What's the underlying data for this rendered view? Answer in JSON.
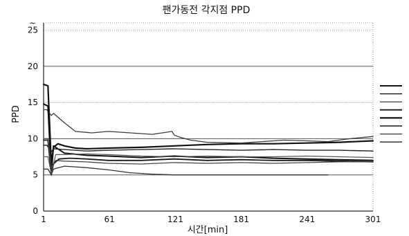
{
  "chart_data": {
    "type": "line",
    "title": "팬가동전 각지점 PPD",
    "xlabel": "시간[min]",
    "ylabel": "PPD",
    "xlim": [
      1,
      301
    ],
    "ylim": [
      0,
      26
    ],
    "x_ticks": [
      1,
      61,
      121,
      181,
      241,
      301
    ],
    "y_ticks": [
      0,
      5,
      10,
      15,
      20,
      25
    ],
    "y_tick_labels": [
      "0",
      "5",
      "10",
      "15",
      "20",
      "25"
    ],
    "grid": "horizontal lines at 5, 10, 15, 20 (solid and dotted); dotted vertical at x=1 and x=301",
    "legend": "right (series names unreadable)",
    "legend_entry_count": 8,
    "series": [
      {
        "x": [
          1,
          5,
          8,
          10,
          14,
          20,
          30,
          40,
          60,
          90,
          120,
          150,
          181,
          210,
          240,
          270,
          301
        ],
        "y": [
          17.5,
          17.3,
          6.5,
          8.8,
          9.3,
          9.0,
          8.7,
          8.6,
          8.7,
          8.8,
          9.0,
          9.2,
          9.3,
          9.3,
          9.4,
          9.5,
          9.7
        ],
        "color": "#111111",
        "width": 2.2
      },
      {
        "x": [
          1,
          4,
          8,
          10,
          20,
          30,
          45,
          60,
          80,
          100,
          118,
          120,
          125,
          135,
          150,
          181,
          200,
          220,
          241,
          260,
          280,
          301
        ],
        "y": [
          14.0,
          14.0,
          13.2,
          13.5,
          12.2,
          11.0,
          10.8,
          11.0,
          10.8,
          10.6,
          11.0,
          10.5,
          10.2,
          9.8,
          9.5,
          9.4,
          9.6,
          9.8,
          9.7,
          9.6,
          10.0,
          10.3
        ],
        "color": "#3a3a3a",
        "width": 1.3
      },
      {
        "x": [
          1,
          5,
          8,
          10,
          20,
          40,
          60,
          90,
          120,
          150,
          181,
          210,
          241,
          270,
          301
        ],
        "y": [
          14.8,
          14.5,
          5.0,
          9.0,
          8.0,
          7.7,
          7.6,
          7.4,
          7.6,
          7.4,
          7.5,
          7.3,
          7.2,
          7.1,
          7.0
        ],
        "color": "#111111",
        "width": 2.0
      },
      {
        "x": [
          1,
          5,
          8,
          10,
          15,
          25,
          40,
          60,
          90,
          120,
          150,
          181,
          210,
          241,
          270,
          301
        ],
        "y": [
          9.8,
          9.8,
          5.0,
          6.5,
          7.2,
          7.3,
          7.2,
          7.0,
          7.0,
          7.2,
          7.0,
          7.1,
          7.0,
          7.0,
          6.9,
          6.8
        ],
        "color": "#1a1a1a",
        "width": 1.8
      },
      {
        "x": [
          1,
          5,
          8,
          12,
          20,
          40,
          60,
          90,
          120,
          150,
          181,
          210,
          241,
          270,
          301
        ],
        "y": [
          7.5,
          7.5,
          5.2,
          7.8,
          7.8,
          7.9,
          7.8,
          7.6,
          7.5,
          7.6,
          7.5,
          7.5,
          7.6,
          7.5,
          7.4
        ],
        "color": "#555555",
        "width": 1.2
      },
      {
        "x": [
          1,
          5,
          8,
          10,
          20,
          40,
          60,
          80,
          100,
          120,
          150,
          181,
          210,
          241,
          260
        ],
        "y": [
          5.8,
          5.8,
          5.0,
          5.8,
          6.2,
          6.0,
          5.7,
          5.3,
          5.1,
          5.0,
          5.0,
          5.0,
          5.0,
          5.0,
          5.0
        ],
        "color": "#333333",
        "width": 1.3
      },
      {
        "x": [
          1,
          4,
          8,
          10,
          20,
          40,
          60,
          90,
          120,
          150,
          181,
          210,
          241,
          270,
          301
        ],
        "y": [
          9.1,
          9.1,
          8.2,
          8.6,
          8.5,
          8.3,
          8.4,
          8.5,
          8.6,
          8.5,
          8.4,
          8.5,
          8.4,
          8.4,
          8.3
        ],
        "color": "#222222",
        "width": 1.4
      },
      {
        "x": [
          1,
          5,
          8,
          12,
          20,
          40,
          60,
          90,
          120,
          150,
          181,
          210,
          241,
          270,
          301
        ],
        "y": [
          10.0,
          10.0,
          6.0,
          7.0,
          6.9,
          6.8,
          6.6,
          6.5,
          6.7,
          6.6,
          6.7,
          6.6,
          6.7,
          6.8,
          6.8
        ],
        "color": "#444444",
        "width": 1.3
      }
    ],
    "legend_colors": [
      "#111111",
      "#111111",
      "#222222",
      "#222222",
      "#111111",
      "#111111",
      "#333333",
      "#444444"
    ],
    "legend_widths": [
      2.0,
      1.4,
      1.2,
      2.0,
      2.2,
      1.4,
      1.2,
      1.6
    ]
  }
}
